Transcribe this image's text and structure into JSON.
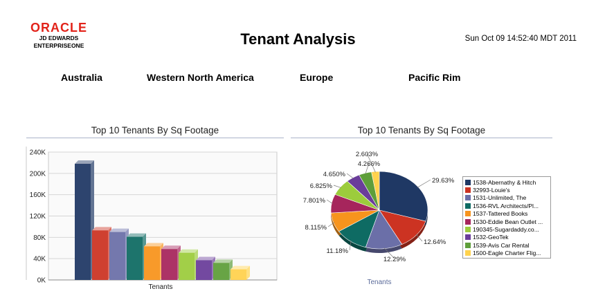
{
  "header": {
    "logo_brand": "ORACLE",
    "logo_line1": "JD EDWARDS",
    "logo_line2": "ENTERPRISEONE",
    "title": "Tenant Analysis",
    "timestamp": "Sun Oct 09 14:52:40 MDT 2011"
  },
  "regions": [
    "Australia",
    "Western North America",
    "Europe",
    "Pacific Rim"
  ],
  "chart_data": [
    {
      "type": "bar",
      "title": "Top 10 Tenants By Sq Footage",
      "xlabel": "Tenants",
      "ylabel": "",
      "ylim": [
        0,
        240000
      ],
      "yticks": [
        0,
        40000,
        80000,
        120000,
        160000,
        200000,
        240000
      ],
      "ytick_labels": [
        "0K",
        "40K",
        "80K",
        "120K",
        "160K",
        "200K",
        "240K"
      ],
      "categories": [
        "1538-Abernathy & Hitch",
        "32993-Louie's",
        "1531-Unlimited, The",
        "1536-RVL Architects/Pl...",
        "1537-Tattered Books",
        "1530-Eddie Bean Outlet ...",
        "190345-Sugardaddy.co...",
        "1532-GeoTek",
        "1539-Avis Car Rental",
        "1500-Eagle Charter Flig..."
      ],
      "values": [
        218000,
        93000,
        90000,
        81000,
        63000,
        58000,
        51000,
        37000,
        32000,
        20000
      ],
      "colors": [
        "#1f3864",
        "#cc3322",
        "#6b6fa8",
        "#0e6b63",
        "#f7941d",
        "#a6255c",
        "#9ccc3c",
        "#6a3d9a",
        "#5e9e3a",
        "#ffd24d"
      ],
      "grid": true
    },
    {
      "type": "pie",
      "title": "Top 10 Tenants By Sq Footage",
      "xlabel": "Tenants",
      "legend": "right",
      "categories": [
        "1538-Abernathy & Hitch",
        "32993-Louie's",
        "1531-Unlimited, The",
        "1536-RVL Architects/Pl...",
        "1537-Tattered Books",
        "1530-Eddie Bean Outlet ...",
        "190345-Sugardaddy.co...",
        "1532-GeoTek",
        "1539-Avis Car Rental",
        "1500-Eagle Charter Flig..."
      ],
      "values": [
        29.63,
        12.64,
        12.29,
        11.18,
        8.115,
        7.801,
        6.825,
        4.65,
        4.266,
        2.603
      ],
      "labels": [
        "29.63%",
        "12.64%",
        "12.29%",
        "11.18%",
        "8.115%",
        "7.801%",
        "6.825%",
        "4.650%",
        "4.266%",
        "2.603%"
      ],
      "colors": [
        "#1f3864",
        "#cc3322",
        "#6b6fa8",
        "#0e6b63",
        "#f7941d",
        "#a6255c",
        "#9ccc3c",
        "#6a3d9a",
        "#5e9e3a",
        "#ffd24d"
      ]
    }
  ]
}
